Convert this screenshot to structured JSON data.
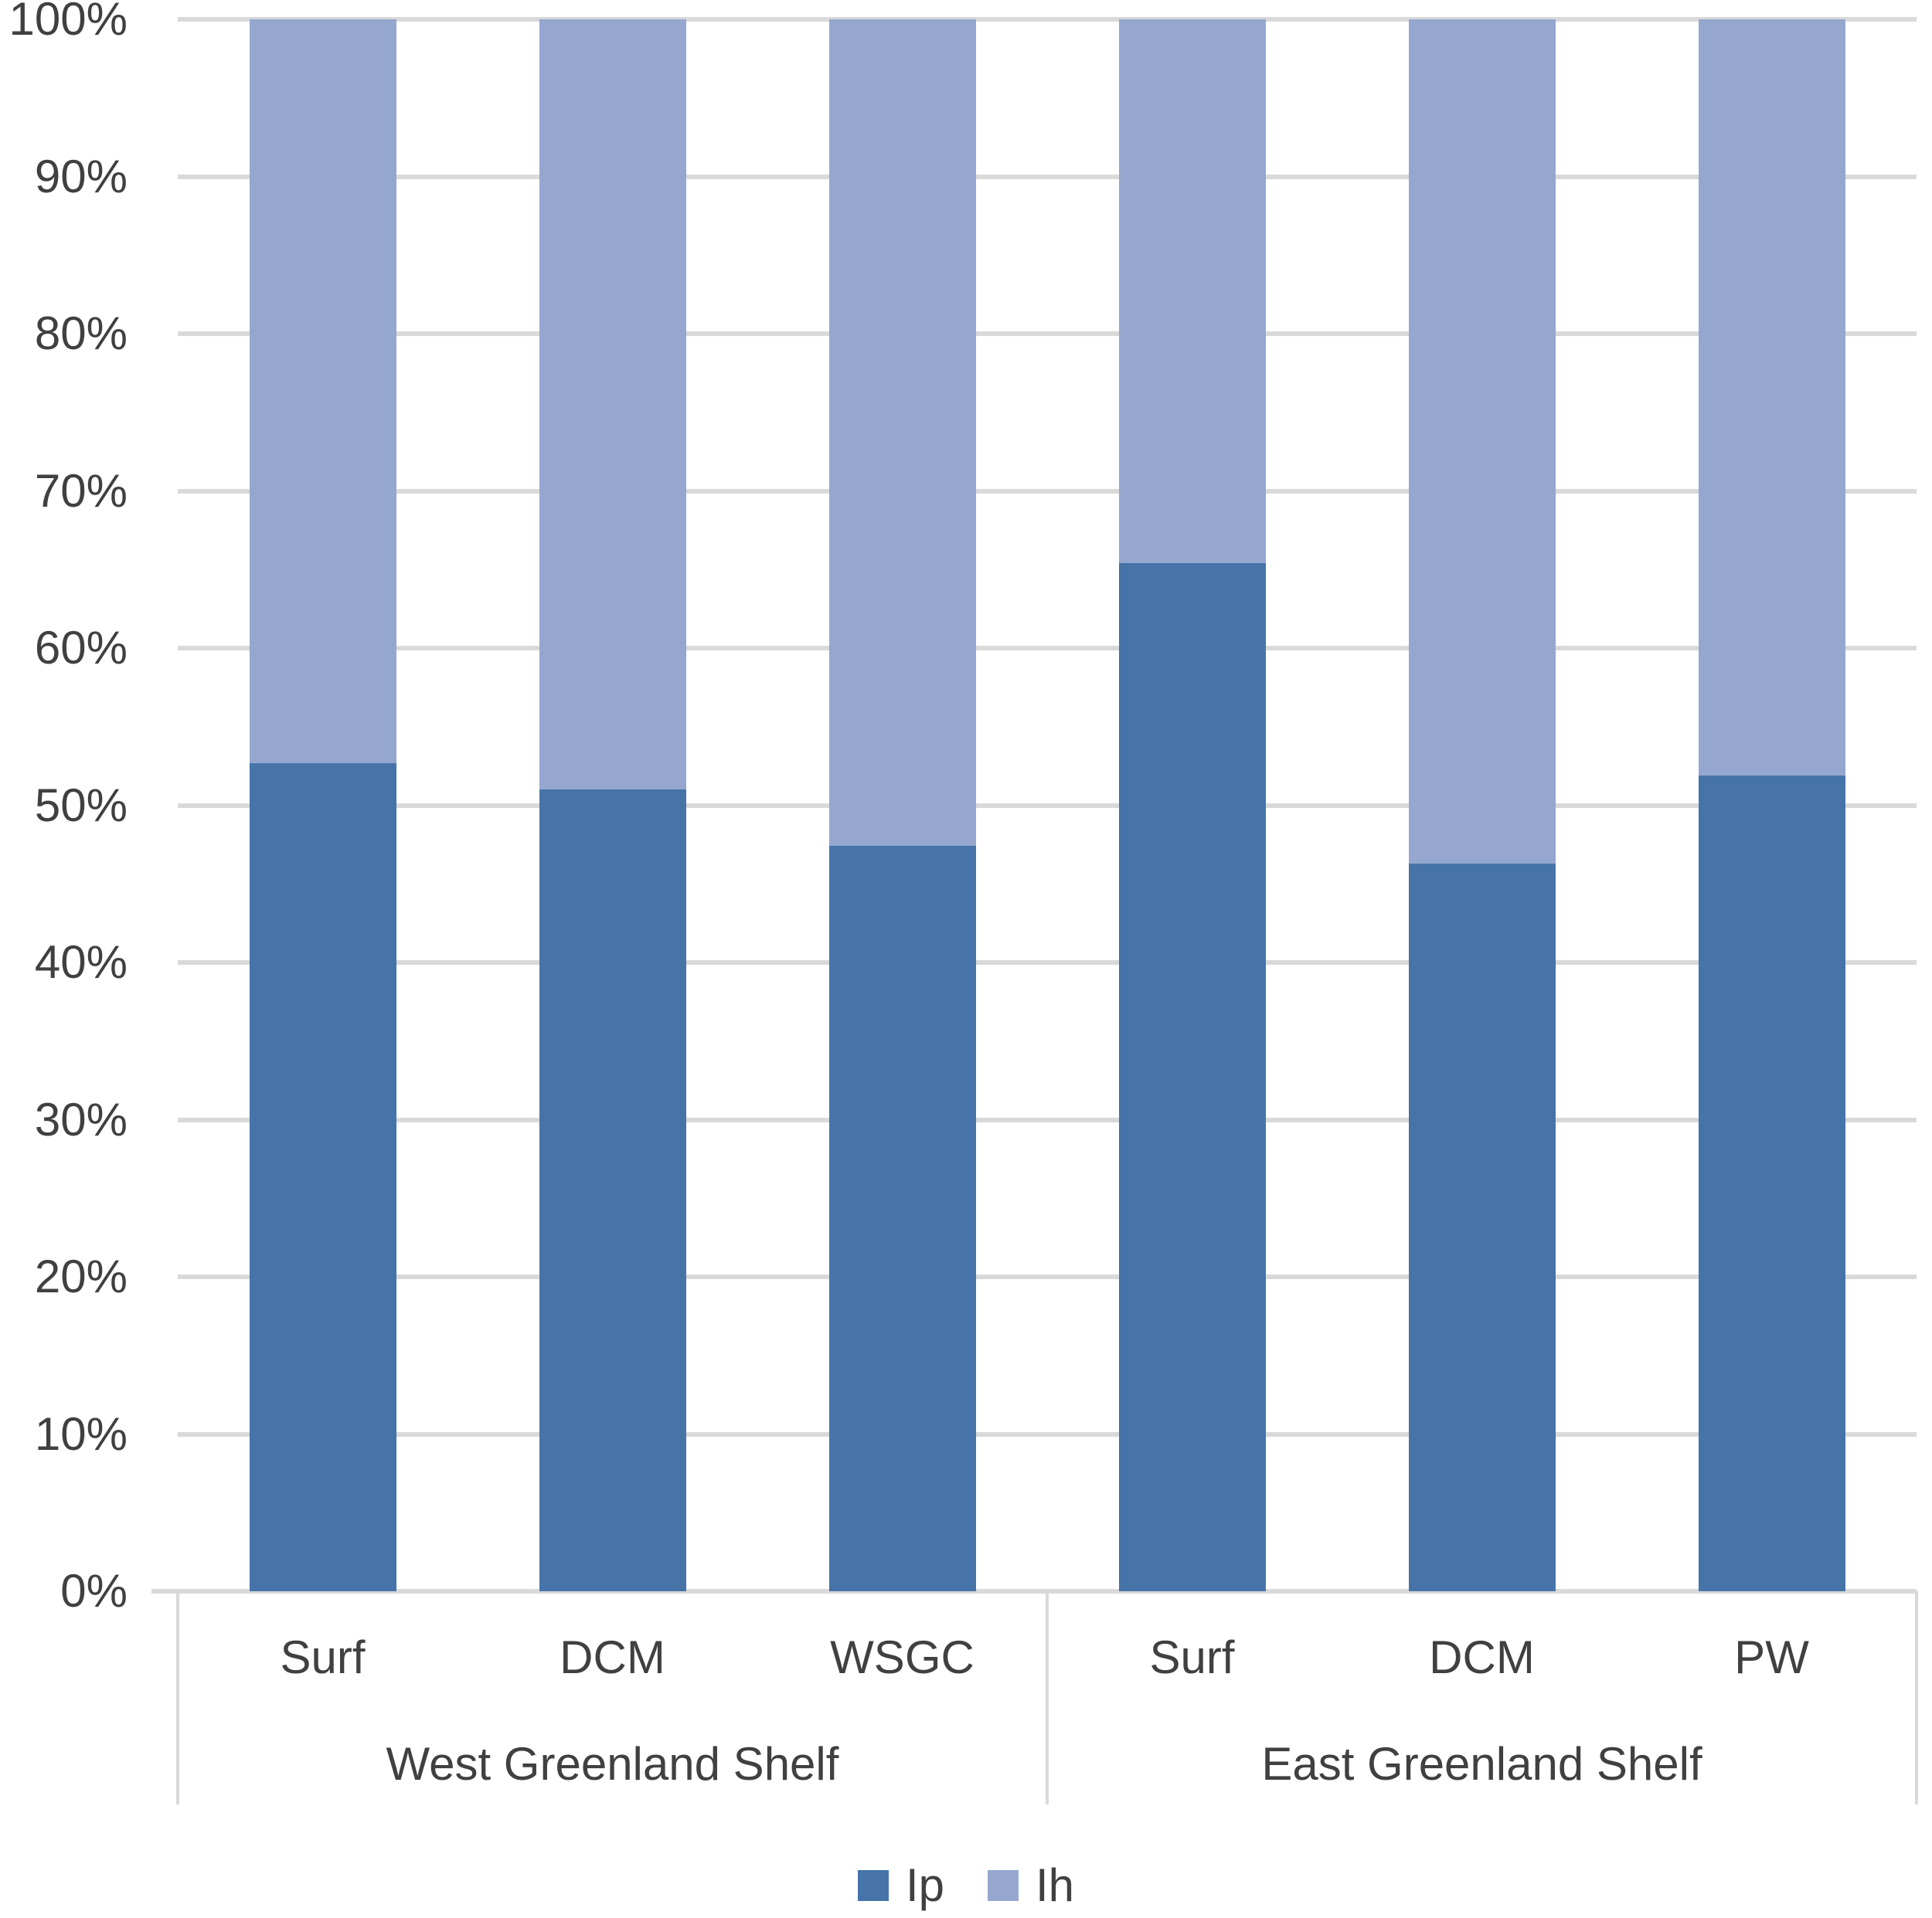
{
  "chart_data": {
    "type": "bar",
    "stacking": "percent",
    "title": "",
    "xlabel": "",
    "ylabel": "",
    "categories": [
      "Surf",
      "DCM",
      "WSGC",
      "Surf",
      "DCM",
      "PW"
    ],
    "category_groups": [
      {
        "label": "West Greenland Shelf",
        "span": 3
      },
      {
        "label": "East Greenland Shelf",
        "span": 3
      }
    ],
    "series": [
      {
        "name": "Ip",
        "color": "#4674A9",
        "values": [
          52.7,
          51.0,
          47.4,
          65.4,
          46.3,
          51.9
        ]
      },
      {
        "name": "Ih",
        "color": "#95A7CF",
        "values": [
          47.3,
          49.0,
          52.6,
          34.6,
          53.7,
          48.1
        ]
      }
    ],
    "y_axis": {
      "min": 0,
      "max": 100,
      "tick_step": 10,
      "tick_labels": [
        "0%",
        "10%",
        "20%",
        "30%",
        "40%",
        "50%",
        "60%",
        "70%",
        "80%",
        "90%",
        "100%"
      ]
    },
    "legend": {
      "position": "bottom",
      "entries": [
        {
          "label": "Ip",
          "color": "#4674A9"
        },
        {
          "label": "Ih",
          "color": "#95A7CF"
        }
      ]
    },
    "grid": true,
    "colors": {
      "gridline": "#D9D9D9",
      "axis_line": "#D9D9D9",
      "text": "#404040",
      "background": "#FFFFFF"
    }
  }
}
